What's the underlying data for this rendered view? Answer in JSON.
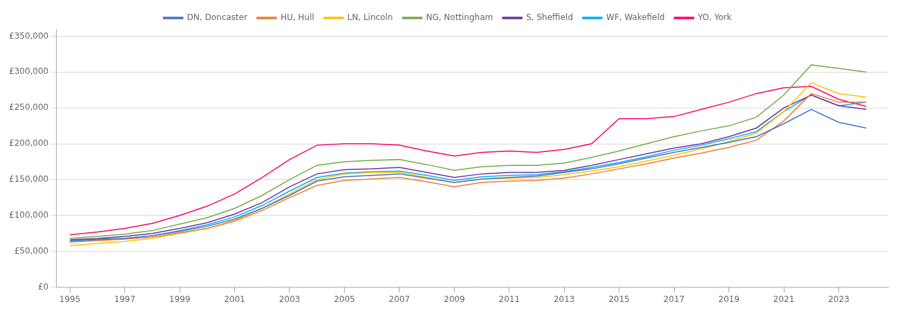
{
  "chart_data": {
    "type": "line",
    "x": [
      1995,
      1996,
      1997,
      1998,
      1999,
      2000,
      2001,
      2002,
      2003,
      2004,
      2005,
      2006,
      2007,
      2008,
      2009,
      2010,
      2011,
      2012,
      2013,
      2014,
      2015,
      2016,
      2017,
      2018,
      2019,
      2020,
      2021,
      2022,
      2023,
      2024
    ],
    "series": [
      {
        "name": "DN, Doncaster",
        "color": "#4472c4",
        "values": [
          65000,
          67000,
          68000,
          72000,
          78000,
          85000,
          95000,
          110000,
          128000,
          148000,
          154000,
          156000,
          158000,
          152000,
          146000,
          151000,
          153000,
          155000,
          160000,
          165000,
          172000,
          180000,
          188000,
          195000,
          202000,
          210000,
          228000,
          248000,
          230000,
          222000
        ]
      },
      {
        "name": "HU, Hull",
        "color": "#ed7d31",
        "values": [
          63000,
          65000,
          67000,
          70000,
          76000,
          82000,
          92000,
          107000,
          125000,
          142000,
          149000,
          151000,
          153000,
          147000,
          140000,
          146000,
          148000,
          149000,
          152000,
          158000,
          165000,
          172000,
          180000,
          187000,
          195000,
          205000,
          232000,
          270000,
          258000,
          258000
        ]
      },
      {
        "name": "LN, Lincoln",
        "color": "#ffc000",
        "values": [
          58000,
          61000,
          64000,
          68000,
          75000,
          82000,
          93000,
          110000,
          130000,
          150000,
          158000,
          160000,
          160000,
          153000,
          146000,
          151000,
          152000,
          153000,
          157000,
          162000,
          168000,
          176000,
          184000,
          193000,
          203000,
          215000,
          245000,
          285000,
          270000,
          265000
        ]
      },
      {
        "name": "NG, Nottingham",
        "color": "#70ad47",
        "values": [
          68000,
          71000,
          74000,
          79000,
          88000,
          97000,
          110000,
          128000,
          150000,
          170000,
          175000,
          177000,
          178000,
          171000,
          163000,
          168000,
          170000,
          170000,
          173000,
          181000,
          190000,
          200000,
          210000,
          218000,
          225000,
          237000,
          268000,
          310000,
          305000,
          300000
        ]
      },
      {
        "name": "S, Sheffield",
        "color": "#7030a0",
        "values": [
          66000,
          68000,
          71000,
          75000,
          82000,
          90000,
          102000,
          118000,
          140000,
          158000,
          164000,
          165000,
          167000,
          160000,
          153000,
          158000,
          160000,
          160000,
          163000,
          170000,
          178000,
          186000,
          194000,
          200000,
          210000,
          222000,
          250000,
          268000,
          253000,
          248000
        ]
      },
      {
        "name": "WF, Wakefield",
        "color": "#00b0f0",
        "values": [
          64000,
          66000,
          68000,
          72000,
          79000,
          87000,
          98000,
          114000,
          134000,
          153000,
          159000,
          161000,
          162000,
          156000,
          149000,
          154000,
          156000,
          157000,
          161000,
          167000,
          174000,
          182000,
          191000,
          198000,
          207000,
          217000,
          245000,
          268000,
          253000,
          258000
        ]
      },
      {
        "name": "YO, York",
        "color": "#ff0066",
        "values": [
          73000,
          77000,
          82000,
          89000,
          100000,
          113000,
          130000,
          153000,
          178000,
          198000,
          200000,
          200000,
          198000,
          190000,
          183000,
          188000,
          190000,
          188000,
          192000,
          200000,
          235000,
          235000,
          238000,
          248000,
          258000,
          270000,
          278000,
          280000,
          262000,
          252000
        ]
      }
    ],
    "xlim": [
      1994.5,
      2024.8
    ],
    "xticks": [
      1995,
      1997,
      1999,
      2001,
      2003,
      2005,
      2007,
      2009,
      2011,
      2013,
      2015,
      2017,
      2019,
      2021,
      2023
    ],
    "ylim": [
      0,
      360000
    ],
    "yticks": [
      {
        "value": 0,
        "label": "£0"
      },
      {
        "value": 50000,
        "label": "£50,000"
      },
      {
        "value": 100000,
        "label": "£100,000"
      },
      {
        "value": 150000,
        "label": "£150,000"
      },
      {
        "value": 200000,
        "label": "£200,000"
      },
      {
        "value": 250000,
        "label": "£250,000"
      },
      {
        "value": 300000,
        "label": "£300,000"
      },
      {
        "value": 350000,
        "label": "£350,000"
      }
    ],
    "grid": true,
    "legend": "top"
  }
}
